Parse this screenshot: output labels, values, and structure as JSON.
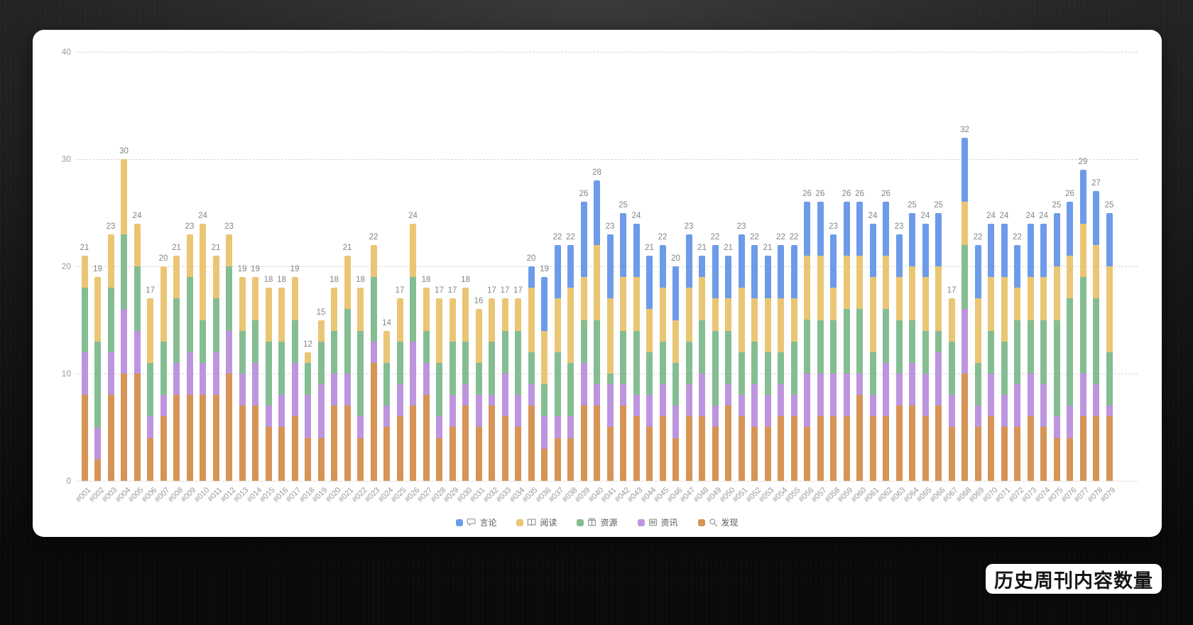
{
  "badge": {
    "text": "历史周刊内容数量"
  },
  "y_axis": {
    "ticks": [
      0,
      10,
      20,
      30,
      40
    ]
  },
  "legend": {
    "items": [
      {
        "label": "言论",
        "icon": "speech-bubble-icon",
        "color": "#6D9BEA"
      },
      {
        "label": "阅读",
        "icon": "open-book-icon",
        "color": "#EAC674"
      },
      {
        "label": "资源",
        "icon": "package-icon",
        "color": "#85BD92"
      },
      {
        "label": "资讯",
        "icon": "newspaper-icon",
        "color": "#BD95DE"
      },
      {
        "label": "发现",
        "icon": "magnifier-icon",
        "color": "#D69455"
      }
    ]
  },
  "chart_data": {
    "type": "bar",
    "stacked": true,
    "title": "历史周刊内容数量",
    "xlabel": "",
    "ylabel": "",
    "ylim": [
      0,
      40
    ],
    "grid": "horizontal-dashed",
    "legend_position": "bottom",
    "categories": [
      "#001",
      "#002",
      "#003",
      "#004",
      "#005",
      "#006",
      "#007",
      "#008",
      "#009",
      "#010",
      "#011",
      "#012",
      "#013",
      "#014",
      "#015",
      "#016",
      "#017",
      "#018",
      "#019",
      "#020",
      "#021",
      "#022",
      "#023",
      "#024",
      "#025",
      "#026",
      "#027",
      "#028",
      "#029",
      "#030",
      "#031",
      "#032",
      "#033",
      "#034",
      "#035",
      "#036",
      "#037",
      "#038",
      "#039",
      "#040",
      "#041",
      "#042",
      "#043",
      "#044",
      "#045",
      "#046",
      "#047",
      "#048",
      "#049",
      "#050",
      "#051",
      "#052",
      "#053",
      "#054",
      "#055",
      "#056",
      "#057",
      "#058",
      "#059",
      "#060",
      "#061",
      "#062",
      "#063",
      "#064",
      "#065",
      "#066",
      "#067",
      "#068",
      "#069",
      "#070",
      "#071",
      "#072",
      "#073",
      "#074",
      "#075",
      "#076",
      "#077",
      "#078",
      "#079"
    ],
    "series": [
      {
        "name": "发现",
        "color": "#D69455",
        "values": [
          8,
          2,
          8,
          10,
          10,
          4,
          6,
          8,
          8,
          8,
          8,
          10,
          7,
          7,
          5,
          5,
          6,
          4,
          4,
          7,
          7,
          4,
          11,
          5,
          6,
          7,
          8,
          4,
          5,
          7,
          5,
          7,
          6,
          5,
          7,
          3,
          4,
          4,
          7,
          7,
          5,
          7,
          6,
          5,
          6,
          4,
          6,
          6,
          5,
          7,
          6,
          5,
          5,
          6,
          6,
          5,
          6,
          6,
          6,
          8,
          6,
          6,
          7,
          7,
          6,
          7,
          5,
          10,
          5,
          6,
          5,
          5,
          6,
          5,
          4,
          4,
          6,
          6,
          6
        ]
      },
      {
        "name": "资讯",
        "color": "#BD95DE",
        "values": [
          4,
          3,
          4,
          6,
          4,
          2,
          2,
          3,
          4,
          3,
          4,
          4,
          3,
          4,
          2,
          3,
          5,
          4,
          5,
          3,
          3,
          2,
          2,
          2,
          3,
          6,
          3,
          2,
          3,
          2,
          3,
          1,
          4,
          3,
          2,
          3,
          2,
          2,
          4,
          2,
          4,
          2,
          2,
          3,
          3,
          3,
          3,
          4,
          2,
          2,
          2,
          4,
          3,
          3,
          2,
          5,
          4,
          4,
          4,
          2,
          2,
          5,
          3,
          4,
          4,
          5,
          3,
          6,
          2,
          4,
          3,
          4,
          4,
          4,
          2,
          3,
          4,
          3,
          1
        ]
      },
      {
        "name": "资源",
        "color": "#85BD92",
        "values": [
          6,
          8,
          6,
          7,
          6,
          5,
          5,
          6,
          7,
          4,
          5,
          6,
          4,
          4,
          6,
          5,
          4,
          3,
          4,
          4,
          6,
          8,
          6,
          4,
          4,
          6,
          3,
          5,
          5,
          4,
          3,
          5,
          4,
          6,
          3,
          3,
          6,
          5,
          4,
          6,
          1,
          5,
          6,
          4,
          4,
          4,
          4,
          5,
          7,
          5,
          4,
          4,
          4,
          3,
          5,
          5,
          5,
          5,
          6,
          6,
          4,
          5,
          5,
          4,
          4,
          2,
          5,
          6,
          4,
          4,
          5,
          6,
          5,
          6,
          9,
          10,
          9,
          8,
          5
        ]
      },
      {
        "name": "阅读",
        "color": "#EAC674",
        "values": [
          3,
          6,
          5,
          7,
          4,
          6,
          7,
          4,
          4,
          9,
          4,
          3,
          5,
          4,
          5,
          5,
          4,
          1,
          2,
          4,
          5,
          4,
          3,
          3,
          4,
          5,
          4,
          6,
          4,
          5,
          5,
          4,
          3,
          3,
          6,
          5,
          5,
          7,
          4,
          7,
          7,
          5,
          5,
          4,
          5,
          4,
          5,
          4,
          3,
          3,
          6,
          4,
          5,
          5,
          4,
          6,
          6,
          3,
          5,
          5,
          7,
          5,
          4,
          5,
          5,
          6,
          4,
          4,
          6,
          5,
          6,
          3,
          4,
          4,
          5,
          4,
          5,
          5,
          8
        ]
      },
      {
        "name": "言论",
        "color": "#6D9BEA",
        "values": [
          0,
          0,
          0,
          0,
          0,
          0,
          0,
          0,
          0,
          0,
          0,
          0,
          0,
          0,
          0,
          0,
          0,
          0,
          0,
          0,
          0,
          0,
          0,
          0,
          0,
          0,
          0,
          0,
          0,
          0,
          0,
          0,
          0,
          0,
          2,
          5,
          5,
          4,
          7,
          6,
          6,
          6,
          5,
          5,
          4,
          5,
          5,
          2,
          5,
          4,
          5,
          5,
          4,
          5,
          5,
          5,
          5,
          5,
          5,
          5,
          5,
          5,
          4,
          5,
          5,
          5,
          0,
          6,
          5,
          5,
          5,
          4,
          5,
          5,
          5,
          5,
          5,
          5,
          5
        ]
      }
    ],
    "totals": [
      21,
      19,
      23,
      30,
      24,
      17,
      20,
      21,
      23,
      24,
      21,
      23,
      19,
      19,
      18,
      18,
      19,
      12,
      15,
      18,
      21,
      18,
      22,
      14,
      17,
      24,
      18,
      17,
      17,
      18,
      16,
      17,
      17,
      17,
      20,
      19,
      22,
      22,
      26,
      28,
      23,
      25,
      24,
      21,
      22,
      20,
      23,
      21,
      22,
      21,
      23,
      22,
      21,
      22,
      22,
      26,
      26,
      23,
      26,
      26,
      24,
      26,
      23,
      25,
      24,
      25,
      17,
      32,
      22,
      24,
      24,
      22,
      24,
      24,
      25,
      26,
      29,
      27,
      25
    ]
  }
}
